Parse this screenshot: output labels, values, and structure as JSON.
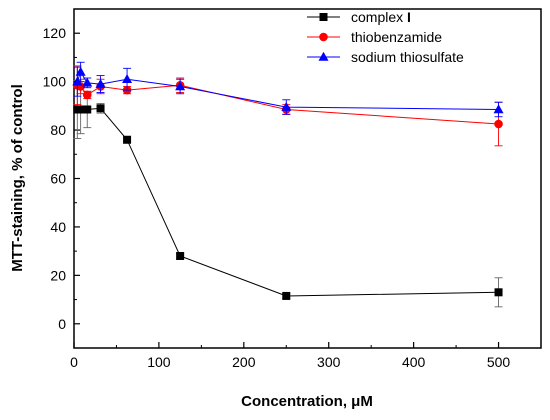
{
  "chart_data": {
    "type": "line",
    "xlabel": "Concentration, μM",
    "ylabel": "MTT-staining, % of control",
    "xlim": [
      0,
      550
    ],
    "ylim": [
      -10,
      130
    ],
    "xticks": [
      0,
      100,
      200,
      300,
      400,
      500
    ],
    "yticks": [
      0,
      20,
      40,
      60,
      80,
      100,
      120
    ],
    "grid": false,
    "legend_position": "top-right",
    "series": [
      {
        "name": "complex",
        "name_suffix": "I",
        "marker": "square",
        "color": "#000000",
        "x": [
          3.9,
          7.8,
          15.6,
          31.25,
          62.5,
          125,
          250,
          500
        ],
        "y": [
          88.5,
          88.5,
          88.5,
          89,
          76,
          28,
          11.5,
          13
        ],
        "err": [
          12,
          10,
          7.5,
          2,
          0,
          1,
          1,
          6
        ]
      },
      {
        "name": "thiobenzamide",
        "marker": "circle",
        "color": "#ff0000",
        "x": [
          3.9,
          7.8,
          15.6,
          31.25,
          62.5,
          125,
          250,
          500
        ],
        "y": [
          98.5,
          98,
          94.5,
          98,
          96.5,
          98.5,
          88.5,
          82.5
        ],
        "err": [
          8,
          3,
          1.5,
          3,
          1.5,
          3,
          2,
          9
        ]
      },
      {
        "name": "sodium thiosulfate",
        "marker": "triangle",
        "color": "#0000ff",
        "x": [
          3.9,
          7.8,
          15.6,
          31.25,
          62.5,
          125,
          250,
          500
        ],
        "y": [
          100,
          104,
          99.5,
          99,
          101,
          98,
          89.5,
          88.5
        ],
        "err": [
          6,
          4,
          2,
          3.5,
          4.5,
          3,
          3,
          3
        ]
      }
    ]
  }
}
